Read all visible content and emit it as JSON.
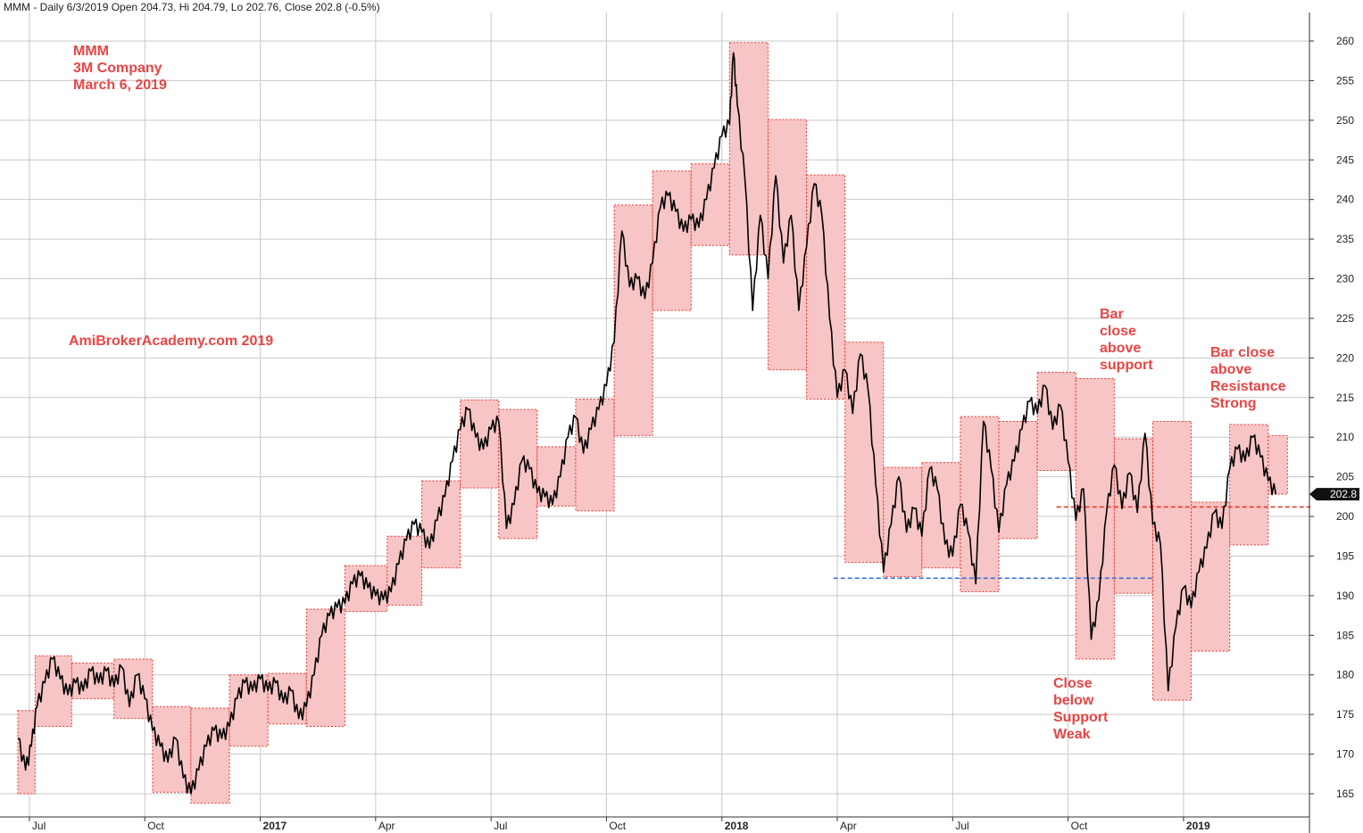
{
  "header": "MMM - Daily 6/3/2019 Open 204.73, Hi 204.79, Lo 202.76, Close 202.8 (-0.5%)",
  "annotations": {
    "title_block": "MMM\n3M Company\nMarch 6, 2019",
    "watermark": "AmiBrokerAcademy.com  2019",
    "bar_close_above_support": "Bar\nclose\nabove\nsupport",
    "bar_close_above_resistance": "Bar close\nabove\nResistance\nStrong",
    "close_below_support": "Close\nbelow\nSupport\nWeak"
  },
  "colors": {
    "box_fill": "#f7c5c5",
    "box_border": "#e53935",
    "price_line": "#000000",
    "support_line": "#3b6fd8",
    "resistance_line": "#e53935",
    "annotation_text": "#e84545",
    "grid": "#c8c8c8"
  },
  "chart_data": {
    "type": "line",
    "title": "",
    "ylim": [
      163,
      262
    ],
    "y_ticks": [
      165,
      170,
      175,
      180,
      185,
      190,
      195,
      200,
      205,
      210,
      215,
      220,
      225,
      230,
      235,
      240,
      245,
      250,
      255,
      260
    ],
    "x_tick_labels": [
      {
        "label": "Jul",
        "t": 0.3,
        "year": false
      },
      {
        "label": "Oct",
        "t": 3.3,
        "year": false
      },
      {
        "label": "2017",
        "t": 6.3,
        "year": true
      },
      {
        "label": "Apr",
        "t": 9.3,
        "year": false
      },
      {
        "label": "Jul",
        "t": 12.3,
        "year": false
      },
      {
        "label": "Oct",
        "t": 15.3,
        "year": false
      },
      {
        "label": "2018",
        "t": 18.3,
        "year": true
      },
      {
        "label": "Apr",
        "t": 21.3,
        "year": false
      },
      {
        "label": "Jul",
        "t": 24.3,
        "year": false
      },
      {
        "label": "Oct",
        "t": 27.3,
        "year": false
      },
      {
        "label": "2019",
        "t": 30.3,
        "year": true
      }
    ],
    "last_price_label": "202.8",
    "last_price": 202.8,
    "support_level": 192.2,
    "support_range": [
      21.2,
      29.5
    ],
    "resistance_level": 201.2,
    "resistance_range": [
      27.0,
      33.6
    ],
    "range_boxes": [
      {
        "t0": 0.0,
        "t1": 0.45,
        "low": 165.0,
        "high": 175.5
      },
      {
        "t0": 0.45,
        "t1": 1.4,
        "low": 173.5,
        "high": 182.4
      },
      {
        "t0": 1.4,
        "t1": 2.5,
        "low": 177.0,
        "high": 181.5
      },
      {
        "t0": 2.5,
        "t1": 3.5,
        "low": 174.5,
        "high": 182.0
      },
      {
        "t0": 3.5,
        "t1": 4.5,
        "low": 165.2,
        "high": 176.0
      },
      {
        "t0": 4.5,
        "t1": 5.5,
        "low": 163.8,
        "high": 175.8
      },
      {
        "t0": 5.5,
        "t1": 6.5,
        "low": 171.0,
        "high": 180.0
      },
      {
        "t0": 6.5,
        "t1": 7.5,
        "low": 173.8,
        "high": 180.2
      },
      {
        "t0": 7.5,
        "t1": 8.5,
        "low": 173.5,
        "high": 188.3
      },
      {
        "t0": 8.5,
        "t1": 9.6,
        "low": 188.0,
        "high": 193.8
      },
      {
        "t0": 9.6,
        "t1": 10.5,
        "low": 188.8,
        "high": 197.5
      },
      {
        "t0": 10.5,
        "t1": 11.5,
        "low": 193.5,
        "high": 204.5
      },
      {
        "t0": 11.5,
        "t1": 12.5,
        "low": 203.6,
        "high": 214.7
      },
      {
        "t0": 12.5,
        "t1": 13.5,
        "low": 197.2,
        "high": 213.5
      },
      {
        "t0": 13.5,
        "t1": 14.5,
        "low": 201.3,
        "high": 208.8
      },
      {
        "t0": 14.5,
        "t1": 15.5,
        "low": 200.7,
        "high": 214.8
      },
      {
        "t0": 15.5,
        "t1": 16.5,
        "low": 210.2,
        "high": 239.3
      },
      {
        "t0": 16.5,
        "t1": 17.5,
        "low": 226.0,
        "high": 243.6
      },
      {
        "t0": 17.5,
        "t1": 18.5,
        "low": 234.2,
        "high": 244.5
      },
      {
        "t0": 18.5,
        "t1": 19.5,
        "low": 233.0,
        "high": 259.8
      },
      {
        "t0": 19.5,
        "t1": 20.5,
        "low": 218.5,
        "high": 250.1
      },
      {
        "t0": 20.5,
        "t1": 21.5,
        "low": 214.8,
        "high": 243.1
      },
      {
        "t0": 21.5,
        "t1": 22.5,
        "low": 194.2,
        "high": 222.0
      },
      {
        "t0": 22.5,
        "t1": 23.5,
        "low": 192.4,
        "high": 206.2
      },
      {
        "t0": 23.5,
        "t1": 24.5,
        "low": 193.5,
        "high": 206.8
      },
      {
        "t0": 24.5,
        "t1": 25.5,
        "low": 190.5,
        "high": 212.6
      },
      {
        "t0": 25.5,
        "t1": 26.5,
        "low": 197.2,
        "high": 212.0
      },
      {
        "t0": 26.5,
        "t1": 27.5,
        "low": 205.8,
        "high": 218.2
      },
      {
        "t0": 27.5,
        "t1": 28.5,
        "low": 182.0,
        "high": 217.4
      },
      {
        "t0": 28.5,
        "t1": 29.5,
        "low": 190.3,
        "high": 209.8
      },
      {
        "t0": 29.5,
        "t1": 30.5,
        "low": 176.8,
        "high": 212.0
      },
      {
        "t0": 30.5,
        "t1": 31.5,
        "low": 183.0,
        "high": 201.8
      },
      {
        "t0": 31.5,
        "t1": 32.5,
        "low": 196.4,
        "high": 211.6
      },
      {
        "t0": 32.5,
        "t1": 33.0,
        "low": 202.8,
        "high": 210.2
      }
    ],
    "price_series": [
      [
        0.0,
        172.0
      ],
      [
        0.2,
        168.0
      ],
      [
        0.35,
        171.0
      ],
      [
        0.5,
        176.0
      ],
      [
        0.7,
        179.0
      ],
      [
        0.9,
        182.0
      ],
      [
        1.1,
        179.5
      ],
      [
        1.3,
        177.5
      ],
      [
        1.5,
        179.0
      ],
      [
        1.7,
        178.0
      ],
      [
        1.9,
        180.5
      ],
      [
        2.1,
        179.0
      ],
      [
        2.3,
        180.5
      ],
      [
        2.5,
        178.5
      ],
      [
        2.7,
        181.0
      ],
      [
        2.9,
        176.0
      ],
      [
        3.1,
        180.0
      ],
      [
        3.3,
        177.0
      ],
      [
        3.5,
        173.0
      ],
      [
        3.7,
        171.0
      ],
      [
        3.9,
        169.0
      ],
      [
        4.1,
        172.0
      ],
      [
        4.3,
        167.0
      ],
      [
        4.5,
        165.0
      ],
      [
        4.7,
        168.0
      ],
      [
        4.9,
        171.0
      ],
      [
        5.1,
        173.0
      ],
      [
        5.3,
        172.0
      ],
      [
        5.5,
        173.5
      ],
      [
        5.7,
        177.0
      ],
      [
        5.9,
        179.0
      ],
      [
        6.1,
        178.0
      ],
      [
        6.3,
        179.5
      ],
      [
        6.5,
        178.0
      ],
      [
        6.7,
        179.0
      ],
      [
        6.9,
        176.5
      ],
      [
        7.1,
        178.0
      ],
      [
        7.3,
        174.5
      ],
      [
        7.5,
        176.0
      ],
      [
        7.7,
        180.0
      ],
      [
        7.9,
        185.0
      ],
      [
        8.1,
        187.5
      ],
      [
        8.3,
        188.5
      ],
      [
        8.5,
        189.0
      ],
      [
        8.7,
        191.5
      ],
      [
        8.9,
        192.5
      ],
      [
        9.1,
        191.0
      ],
      [
        9.3,
        190.0
      ],
      [
        9.5,
        189.5
      ],
      [
        9.7,
        190.5
      ],
      [
        9.9,
        194.0
      ],
      [
        10.1,
        197.0
      ],
      [
        10.3,
        199.0
      ],
      [
        10.5,
        198.0
      ],
      [
        10.7,
        196.0
      ],
      [
        10.9,
        199.5
      ],
      [
        11.1,
        202.5
      ],
      [
        11.3,
        207.0
      ],
      [
        11.5,
        211.0
      ],
      [
        11.7,
        213.5
      ],
      [
        11.9,
        210.0
      ],
      [
        12.1,
        208.5
      ],
      [
        12.3,
        211.0
      ],
      [
        12.5,
        212.0
      ],
      [
        12.7,
        198.5
      ],
      [
        12.9,
        201.5
      ],
      [
        13.1,
        207.0
      ],
      [
        13.3,
        206.0
      ],
      [
        13.5,
        203.0
      ],
      [
        13.7,
        202.5
      ],
      [
        13.9,
        201.5
      ],
      [
        14.1,
        205.0
      ],
      [
        14.3,
        210.0
      ],
      [
        14.5,
        212.5
      ],
      [
        14.7,
        208.0
      ],
      [
        14.9,
        211.0
      ],
      [
        15.1,
        213.5
      ],
      [
        15.3,
        216.5
      ],
      [
        15.5,
        222.0
      ],
      [
        15.7,
        236.0
      ],
      [
        15.9,
        229.0
      ],
      [
        16.1,
        230.0
      ],
      [
        16.3,
        227.5
      ],
      [
        16.5,
        232.0
      ],
      [
        16.7,
        239.0
      ],
      [
        16.9,
        240.5
      ],
      [
        17.1,
        238.5
      ],
      [
        17.3,
        236.0
      ],
      [
        17.5,
        237.5
      ],
      [
        17.7,
        236.5
      ],
      [
        17.9,
        240.0
      ],
      [
        18.1,
        244.0
      ],
      [
        18.3,
        248.0
      ],
      [
        18.5,
        249.5
      ],
      [
        18.6,
        258.5
      ],
      [
        18.7,
        252.0
      ],
      [
        18.9,
        242.5
      ],
      [
        19.1,
        226.0
      ],
      [
        19.3,
        238.0
      ],
      [
        19.5,
        230.0
      ],
      [
        19.7,
        243.0
      ],
      [
        19.9,
        232.0
      ],
      [
        20.1,
        238.0
      ],
      [
        20.3,
        226.0
      ],
      [
        20.5,
        234.0
      ],
      [
        20.7,
        242.0
      ],
      [
        20.9,
        238.0
      ],
      [
        21.1,
        225.0
      ],
      [
        21.3,
        215.0
      ],
      [
        21.5,
        218.5
      ],
      [
        21.7,
        213.0
      ],
      [
        21.9,
        220.5
      ],
      [
        22.1,
        216.0
      ],
      [
        22.3,
        204.0
      ],
      [
        22.5,
        193.0
      ],
      [
        22.7,
        199.0
      ],
      [
        22.9,
        205.0
      ],
      [
        23.1,
        198.0
      ],
      [
        23.3,
        201.0
      ],
      [
        23.5,
        197.5
      ],
      [
        23.7,
        206.0
      ],
      [
        23.9,
        203.5
      ],
      [
        24.1,
        196.5
      ],
      [
        24.3,
        195.0
      ],
      [
        24.5,
        201.5
      ],
      [
        24.7,
        198.0
      ],
      [
        24.9,
        191.5
      ],
      [
        25.1,
        212.0
      ],
      [
        25.3,
        206.0
      ],
      [
        25.5,
        198.0
      ],
      [
        25.7,
        204.0
      ],
      [
        25.9,
        207.0
      ],
      [
        26.1,
        211.0
      ],
      [
        26.3,
        214.5
      ],
      [
        26.5,
        213.0
      ],
      [
        26.7,
        216.5
      ],
      [
        26.9,
        211.0
      ],
      [
        27.1,
        214.0
      ],
      [
        27.3,
        207.0
      ],
      [
        27.5,
        199.5
      ],
      [
        27.7,
        203.5
      ],
      [
        27.9,
        184.5
      ],
      [
        28.1,
        189.5
      ],
      [
        28.3,
        200.5
      ],
      [
        28.5,
        206.5
      ],
      [
        28.7,
        201.0
      ],
      [
        28.9,
        205.5
      ],
      [
        29.1,
        200.5
      ],
      [
        29.3,
        210.5
      ],
      [
        29.5,
        199.0
      ],
      [
        29.7,
        196.5
      ],
      [
        29.9,
        178.0
      ],
      [
        30.1,
        186.0
      ],
      [
        30.3,
        191.0
      ],
      [
        30.5,
        188.5
      ],
      [
        30.7,
        193.0
      ],
      [
        30.9,
        196.0
      ],
      [
        31.1,
        200.5
      ],
      [
        31.3,
        198.5
      ],
      [
        31.5,
        206.0
      ],
      [
        31.7,
        208.5
      ],
      [
        31.9,
        207.0
      ],
      [
        32.1,
        210.0
      ],
      [
        32.3,
        207.5
      ],
      [
        32.5,
        204.5
      ],
      [
        32.7,
        202.8
      ]
    ]
  }
}
